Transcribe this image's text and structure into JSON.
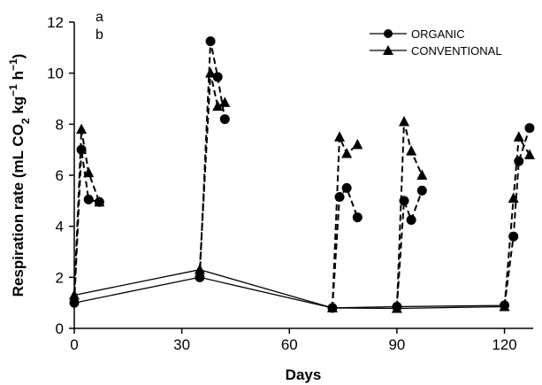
{
  "chart_data": {
    "type": "line",
    "xlabel": "Days",
    "ylabel_parts": [
      "Respiration rate (mL CO",
      "2",
      " kg",
      "−1",
      " h",
      "−1",
      ")"
    ],
    "xlim": [
      0,
      128
    ],
    "ylim": [
      0,
      12
    ],
    "xticks": [
      "0",
      "30",
      "60",
      "90",
      "120"
    ],
    "yticks": [
      "0",
      "2",
      "4",
      "6",
      "8",
      "10",
      "12"
    ],
    "annotations": [
      "a",
      "b"
    ],
    "legend_position": "top-right",
    "series": [
      {
        "name": "ORGANIC",
        "marker": "circle",
        "baseline": {
          "x": [
            0,
            35,
            72,
            90,
            120
          ],
          "y": [
            1.0,
            2.0,
            0.8,
            0.85,
            0.9
          ]
        },
        "bursts": [
          {
            "x": [
              0,
              2,
              4,
              7
            ],
            "y": [
              1.0,
              7.0,
              5.05,
              4.95
            ]
          },
          {
            "x": [
              35,
              38,
              40,
              42
            ],
            "y": [
              2.0,
              11.25,
              9.85,
              8.2
            ]
          },
          {
            "x": [
              72,
              74,
              76,
              79
            ],
            "y": [
              0.8,
              5.15,
              5.5,
              4.35
            ]
          },
          {
            "x": [
              90,
              92,
              94,
              97
            ],
            "y": [
              0.85,
              5.0,
              4.25,
              5.4
            ]
          },
          {
            "x": [
              120,
              122.5,
              124,
              127
            ],
            "y": [
              0.9,
              3.6,
              6.55,
              7.85
            ]
          }
        ]
      },
      {
        "name": "CONVENTIONAL",
        "marker": "triangle",
        "baseline": {
          "x": [
            0,
            35,
            72,
            90,
            120
          ],
          "y": [
            1.3,
            2.3,
            0.8,
            0.78,
            0.85
          ]
        },
        "bursts": [
          {
            "x": [
              0,
              2,
              4,
              7
            ],
            "y": [
              1.3,
              7.8,
              6.1,
              4.95
            ]
          },
          {
            "x": [
              35,
              38,
              40,
              42
            ],
            "y": [
              2.3,
              10.0,
              8.7,
              8.85
            ]
          },
          {
            "x": [
              72,
              74,
              76,
              79
            ],
            "y": [
              0.8,
              7.5,
              6.85,
              7.2
            ]
          },
          {
            "x": [
              90,
              92,
              94,
              97
            ],
            "y": [
              0.78,
              8.1,
              6.95,
              6.0
            ]
          },
          {
            "x": [
              120,
              122.5,
              124,
              127
            ],
            "y": [
              0.85,
              5.1,
              7.5,
              6.8
            ]
          }
        ]
      }
    ]
  }
}
